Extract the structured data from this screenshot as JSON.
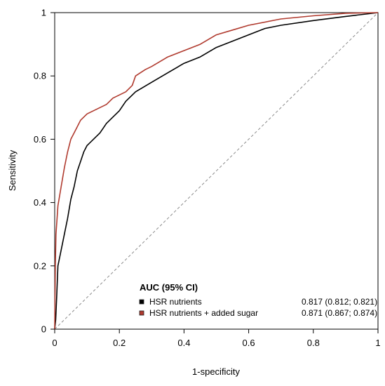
{
  "chart_data": {
    "type": "line",
    "xlabel": "1-specificity",
    "ylabel": "Sensitivity",
    "xlim": [
      0,
      1
    ],
    "ylim": [
      0,
      1
    ],
    "xticks": [
      "0",
      "0.2",
      "0.4",
      "0.6",
      "0.8",
      "1"
    ],
    "yticks": [
      "0",
      "0.2",
      "0.4",
      "0.6",
      "0.8",
      "1"
    ],
    "grid": false,
    "legend": {
      "title": "AUC (95% CI)",
      "placement": "bottom-right",
      "entries": [
        {
          "label": "HSR nutrients",
          "value": "0.817 (0.812; 0.821)"
        },
        {
          "label": "HSR nutrients + added sugar",
          "value": "0.871 (0.867; 0.874)"
        }
      ]
    },
    "reference_line": {
      "style": "dashed",
      "color": "#8c8c8c",
      "points": [
        [
          0,
          0
        ],
        [
          1,
          1
        ]
      ]
    },
    "series": [
      {
        "name": "HSR nutrients",
        "color": "#000000",
        "points": [
          [
            0,
            0
          ],
          [
            0.003,
            0.03
          ],
          [
            0.006,
            0.1
          ],
          [
            0.01,
            0.2
          ],
          [
            0.02,
            0.25
          ],
          [
            0.03,
            0.3
          ],
          [
            0.04,
            0.35
          ],
          [
            0.05,
            0.41
          ],
          [
            0.06,
            0.45
          ],
          [
            0.07,
            0.5
          ],
          [
            0.08,
            0.53
          ],
          [
            0.09,
            0.56
          ],
          [
            0.1,
            0.58
          ],
          [
            0.12,
            0.6
          ],
          [
            0.14,
            0.62
          ],
          [
            0.16,
            0.65
          ],
          [
            0.18,
            0.67
          ],
          [
            0.2,
            0.69
          ],
          [
            0.22,
            0.72
          ],
          [
            0.25,
            0.75
          ],
          [
            0.3,
            0.78
          ],
          [
            0.35,
            0.81
          ],
          [
            0.4,
            0.84
          ],
          [
            0.45,
            0.86
          ],
          [
            0.5,
            0.89
          ],
          [
            0.55,
            0.91
          ],
          [
            0.6,
            0.93
          ],
          [
            0.65,
            0.95
          ],
          [
            0.7,
            0.96
          ],
          [
            0.8,
            0.975
          ],
          [
            0.9,
            0.988
          ],
          [
            1,
            1
          ]
        ]
      },
      {
        "name": "HSR nutrients + added sugar",
        "color": "#b03a2e",
        "points": [
          [
            0,
            0
          ],
          [
            0.002,
            0.2
          ],
          [
            0.004,
            0.3
          ],
          [
            0.008,
            0.36
          ],
          [
            0.01,
            0.39
          ],
          [
            0.02,
            0.45
          ],
          [
            0.03,
            0.51
          ],
          [
            0.04,
            0.56
          ],
          [
            0.05,
            0.6
          ],
          [
            0.06,
            0.62
          ],
          [
            0.07,
            0.64
          ],
          [
            0.08,
            0.66
          ],
          [
            0.1,
            0.68
          ],
          [
            0.12,
            0.69
          ],
          [
            0.14,
            0.7
          ],
          [
            0.16,
            0.71
          ],
          [
            0.18,
            0.73
          ],
          [
            0.2,
            0.74
          ],
          [
            0.22,
            0.75
          ],
          [
            0.24,
            0.77
          ],
          [
            0.25,
            0.8
          ],
          [
            0.28,
            0.82
          ],
          [
            0.3,
            0.83
          ],
          [
            0.35,
            0.86
          ],
          [
            0.4,
            0.88
          ],
          [
            0.45,
            0.9
          ],
          [
            0.5,
            0.93
          ],
          [
            0.55,
            0.945
          ],
          [
            0.6,
            0.96
          ],
          [
            0.7,
            0.98
          ],
          [
            0.8,
            0.99
          ],
          [
            0.9,
            0.998
          ],
          [
            1,
            1
          ]
        ]
      }
    ]
  }
}
